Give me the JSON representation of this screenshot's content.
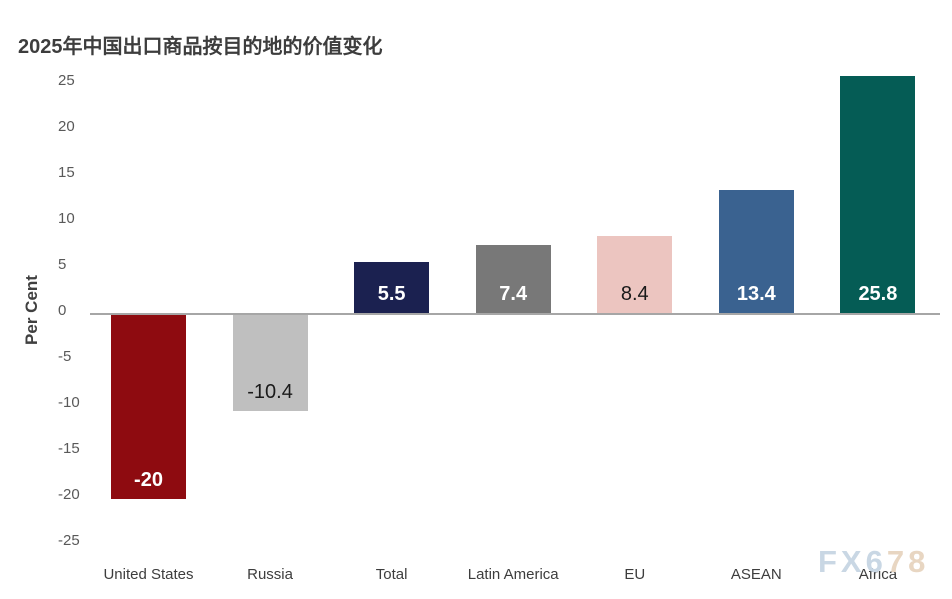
{
  "title": "2025年中国出口商品按目的地的价值变化",
  "y_axis_title": "Per Cent",
  "watermark": {
    "part_blue": "FX6",
    "part_tan": "78",
    "color_blue": "#c9d7e4",
    "color_tan": "#e8d6c2"
  },
  "colors": {
    "axis_line": "#a6a6a6",
    "tick_label": "#595959",
    "category_label": "#3d3d3d",
    "title": "#3d3d3d"
  },
  "chart_data": {
    "type": "bar",
    "title": "2025年中国出口商品按目的地的价值变化",
    "xlabel": "",
    "ylabel": "Per Cent",
    "ylim": [
      -25,
      25
    ],
    "yticks": [
      25,
      20,
      15,
      10,
      5,
      0,
      -5,
      -10,
      -15,
      -20,
      -25
    ],
    "grid": false,
    "legend": null,
    "categories": [
      "United States",
      "Russia",
      "Total",
      "Latin America",
      "EU",
      "ASEAN",
      "Africa"
    ],
    "values": [
      -20,
      -10.4,
      5.5,
      7.4,
      8.4,
      13.4,
      25.8
    ],
    "value_labels": [
      "-20",
      "-10.4",
      "5.5",
      "7.4",
      "8.4",
      "13.4",
      "25.8"
    ],
    "bar_colors": [
      "#8e0b10",
      "#bfbfbf",
      "#1b2150",
      "#787878",
      "#ecc5c0",
      "#3a6290",
      "#055c55"
    ],
    "value_label_colors": [
      "#ffffff",
      "#1a1a1a",
      "#ffffff",
      "#ffffff",
      "#1a1a1a",
      "#ffffff",
      "#ffffff"
    ],
    "value_label_weights": [
      700,
      400,
      700,
      700,
      400,
      700,
      700
    ]
  }
}
